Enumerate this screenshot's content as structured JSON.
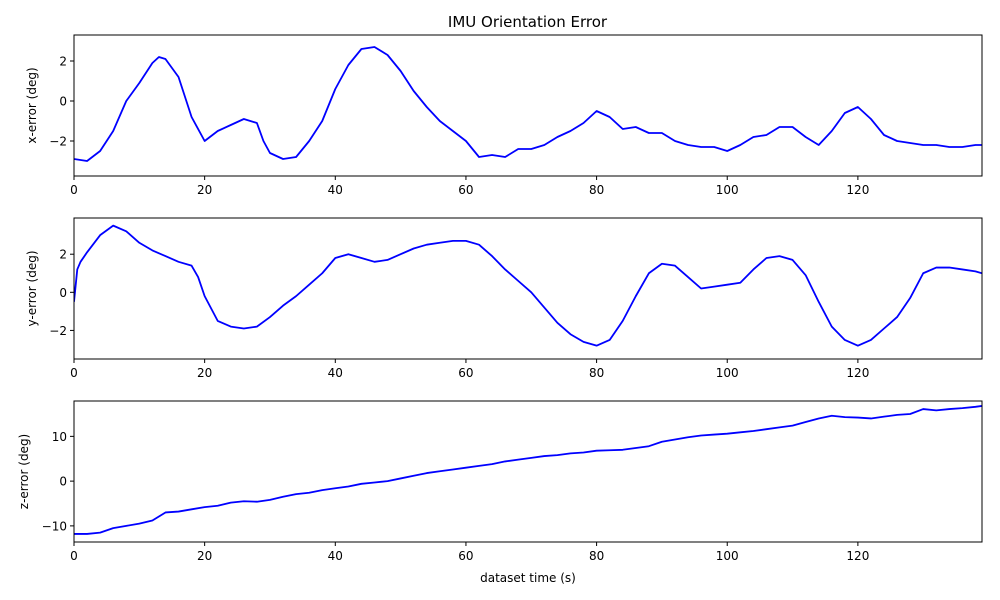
{
  "chart_data": [
    {
      "type": "line",
      "title": "IMU Orientation Error",
      "xlabel": "",
      "ylabel": "x-error (deg)",
      "xlim": [
        0,
        139
      ],
      "ylim": [
        -3.75,
        3.3
      ],
      "xticks": [
        0,
        20,
        40,
        60,
        80,
        100,
        120
      ],
      "yticks": [
        -2,
        0,
        2
      ],
      "grid": false,
      "color": "#0000ff",
      "series": [
        {
          "x": [
            0,
            2,
            4,
            6,
            8,
            10,
            12,
            13,
            14,
            16,
            18,
            20,
            22,
            24,
            26,
            28,
            29,
            30,
            32,
            34,
            36,
            38,
            40,
            42,
            44,
            46,
            48,
            50,
            52,
            54,
            56,
            58,
            60,
            62,
            64,
            66,
            68,
            70,
            72,
            74,
            76,
            78,
            80,
            82,
            84,
            86,
            88,
            90,
            92,
            94,
            96,
            98,
            100,
            102,
            104,
            106,
            108,
            110,
            112,
            114,
            116,
            118,
            120,
            122,
            124,
            126,
            128,
            130,
            132,
            134,
            136,
            138,
            139
          ],
          "y": [
            -2.9,
            -3.0,
            -2.5,
            -1.5,
            0.0,
            0.9,
            1.9,
            2.2,
            2.1,
            1.2,
            -0.8,
            -2.0,
            -1.5,
            -1.2,
            -0.9,
            -1.1,
            -2.0,
            -2.6,
            -2.9,
            -2.8,
            -2.0,
            -1.0,
            0.6,
            1.8,
            2.6,
            2.7,
            2.3,
            1.5,
            0.5,
            -0.3,
            -1.0,
            -1.5,
            -2.0,
            -2.8,
            -2.7,
            -2.8,
            -2.4,
            -2.4,
            -2.2,
            -1.8,
            -1.5,
            -1.1,
            -0.5,
            -0.8,
            -1.4,
            -1.3,
            -1.6,
            -1.6,
            -2.0,
            -2.2,
            -2.3,
            -2.3,
            -2.5,
            -2.2,
            -1.8,
            -1.7,
            -1.3,
            -1.3,
            -1.8,
            -2.2,
            -1.5,
            -0.6,
            -0.3,
            -0.9,
            -1.7,
            -2.0,
            -2.1,
            -2.2,
            -2.2,
            -2.3,
            -2.3,
            -2.2,
            -2.2
          ]
        }
      ]
    },
    {
      "type": "line",
      "xlabel": "",
      "ylabel": "y-error (deg)",
      "xlim": [
        0,
        139
      ],
      "ylim": [
        -3.5,
        3.9
      ],
      "xticks": [
        0,
        20,
        40,
        60,
        80,
        100,
        120
      ],
      "yticks": [
        -2,
        0,
        2
      ],
      "grid": false,
      "color": "#0000ff",
      "series": [
        {
          "x": [
            0,
            0.5,
            1,
            2,
            4,
            6,
            8,
            10,
            12,
            14,
            16,
            18,
            19,
            20,
            22,
            24,
            26,
            28,
            30,
            32,
            34,
            36,
            38,
            40,
            42,
            44,
            46,
            48,
            50,
            52,
            54,
            56,
            58,
            60,
            62,
            64,
            66,
            68,
            70,
            72,
            74,
            76,
            78,
            80,
            82,
            84,
            86,
            88,
            90,
            92,
            94,
            96,
            98,
            100,
            102,
            104,
            106,
            108,
            110,
            112,
            114,
            116,
            118,
            120,
            122,
            124,
            126,
            128,
            130,
            132,
            134,
            136,
            138,
            139
          ],
          "y": [
            -0.5,
            1.2,
            1.6,
            2.1,
            3.0,
            3.5,
            3.2,
            2.6,
            2.2,
            1.9,
            1.6,
            1.4,
            0.8,
            -0.2,
            -1.5,
            -1.8,
            -1.9,
            -1.8,
            -1.3,
            -0.7,
            -0.2,
            0.4,
            1.0,
            1.8,
            2.0,
            1.8,
            1.6,
            1.7,
            2.0,
            2.3,
            2.5,
            2.6,
            2.7,
            2.7,
            2.5,
            1.9,
            1.2,
            0.6,
            0.0,
            -0.8,
            -1.6,
            -2.2,
            -2.6,
            -2.8,
            -2.5,
            -1.5,
            -0.2,
            1.0,
            1.5,
            1.4,
            0.8,
            0.2,
            0.3,
            0.4,
            0.5,
            1.2,
            1.8,
            1.9,
            1.7,
            0.9,
            -0.5,
            -1.8,
            -2.5,
            -2.8,
            -2.5,
            -1.9,
            -1.3,
            -0.3,
            1.0,
            1.3,
            1.3,
            1.2,
            1.1,
            1.0
          ]
        }
      ]
    },
    {
      "type": "line",
      "xlabel": "dataset time (s)",
      "ylabel": "z-error (deg)",
      "xlim": [
        0,
        139
      ],
      "ylim": [
        -13.6,
        17.9
      ],
      "xticks": [
        0,
        20,
        40,
        60,
        80,
        100,
        120
      ],
      "yticks": [
        -10,
        0,
        10
      ],
      "grid": false,
      "color": "#0000ff",
      "series": [
        {
          "x": [
            0,
            2,
            4,
            6,
            8,
            10,
            12,
            14,
            16,
            18,
            20,
            22,
            24,
            26,
            28,
            30,
            32,
            34,
            36,
            38,
            40,
            42,
            44,
            46,
            48,
            50,
            52,
            54,
            56,
            58,
            60,
            62,
            64,
            66,
            68,
            70,
            72,
            74,
            76,
            78,
            80,
            82,
            84,
            86,
            88,
            90,
            92,
            94,
            96,
            98,
            100,
            102,
            104,
            106,
            108,
            110,
            112,
            114,
            116,
            118,
            120,
            122,
            124,
            126,
            128,
            130,
            132,
            134,
            136,
            138,
            139
          ],
          "y": [
            -11.8,
            -11.8,
            -11.5,
            -10.5,
            -10.0,
            -9.5,
            -8.8,
            -7.0,
            -6.8,
            -6.3,
            -5.8,
            -5.5,
            -4.8,
            -4.5,
            -4.6,
            -4.2,
            -3.5,
            -2.9,
            -2.6,
            -2.0,
            -1.6,
            -1.2,
            -0.6,
            -0.3,
            0.0,
            0.6,
            1.2,
            1.8,
            2.2,
            2.6,
            3.0,
            3.4,
            3.8,
            4.4,
            4.8,
            5.2,
            5.6,
            5.8,
            6.2,
            6.4,
            6.8,
            6.9,
            7.0,
            7.4,
            7.8,
            8.8,
            9.3,
            9.8,
            10.2,
            10.4,
            10.6,
            10.9,
            11.2,
            11.6,
            12.0,
            12.4,
            13.2,
            14.0,
            14.6,
            14.3,
            14.2,
            14.0,
            14.4,
            14.8,
            15.0,
            16.1,
            15.8,
            16.1,
            16.3,
            16.6,
            16.8
          ]
        }
      ]
    }
  ]
}
